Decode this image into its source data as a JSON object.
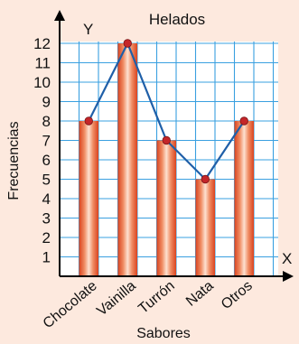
{
  "chart_data": {
    "type": "bar",
    "title": "Helados",
    "xlabel": "Sabores",
    "ylabel": "Frecuencias",
    "x_axis_letter": "X",
    "y_axis_letter": "Y",
    "categories": [
      "Chocolate",
      "Vainilla",
      "Turrón",
      "Nata",
      "Otros"
    ],
    "values": [
      8,
      12,
      7,
      5,
      8
    ],
    "y_ticks": [
      "1",
      "2",
      "3",
      "4",
      "5",
      "6",
      "7",
      "8",
      "9",
      "10",
      "11",
      "12"
    ],
    "ylim": [
      0,
      13
    ],
    "grid": true,
    "overlay": "frequency polygon connecting bar tops",
    "colors": {
      "background": "#fde9de",
      "plot_background": "#ffffff",
      "grid": "#3aa0e0",
      "bar_center": "#fbd7c4",
      "bar_edge": "#e0502a",
      "polygon_line": "#1f5fa8",
      "points": "#c4262a",
      "axis": "#000000"
    }
  }
}
